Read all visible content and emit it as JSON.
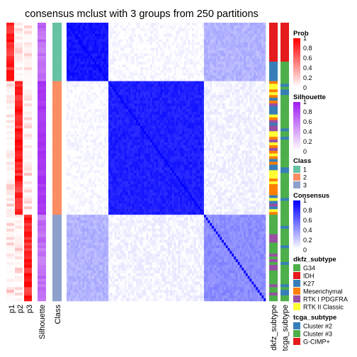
{
  "chart_data": {
    "type": "heatmap",
    "title": "consensus mclust with 3 groups from 250 partitions",
    "n_samples": 100,
    "segments": [
      {
        "class": 1,
        "count": 21
      },
      {
        "class": 2,
        "count": 48
      },
      {
        "class": 3,
        "count": 31
      }
    ],
    "left_tracks": [
      "p1",
      "p2",
      "p3",
      "Silhouette",
      "Class"
    ],
    "right_tracks": [
      "dkfz_subtype",
      "tcga_subtype"
    ],
    "consensus_blocks": [
      {
        "rows": [
          1,
          1
        ],
        "cols": [
          1,
          1
        ],
        "value": 0.92
      },
      {
        "rows": [
          1,
          1
        ],
        "cols": [
          2,
          2
        ],
        "value": 0.02
      },
      {
        "rows": [
          1,
          1
        ],
        "cols": [
          3,
          3
        ],
        "value": 0.3
      },
      {
        "rows": [
          2,
          2
        ],
        "cols": [
          2,
          2
        ],
        "value": 0.88
      },
      {
        "rows": [
          2,
          2
        ],
        "cols": [
          3,
          3
        ],
        "value": 0.05
      },
      {
        "rows": [
          3,
          3
        ],
        "cols": [
          3,
          3
        ],
        "value": 0.45
      }
    ],
    "legends": [
      {
        "title": "Prob",
        "type": "continuous",
        "ticks": [
          "1",
          "0.8",
          "0.6",
          "0.4",
          "0.2",
          "0"
        ],
        "low": "#ffffff",
        "high": "#ff0000"
      },
      {
        "title": "Silhouette",
        "type": "continuous",
        "ticks": [
          "1",
          "0.8",
          "0.6",
          "0.4",
          "0.2",
          "0"
        ],
        "low": "#ffffff",
        "high": "#a020f0"
      },
      {
        "title": "Class",
        "type": "discrete",
        "items": [
          {
            "label": "1",
            "color": "#66c2a5"
          },
          {
            "label": "2",
            "color": "#fc8d62"
          },
          {
            "label": "3",
            "color": "#8da0cb"
          }
        ]
      },
      {
        "title": "Consensus",
        "type": "continuous",
        "ticks": [
          "1",
          "0.8",
          "0.6",
          "0.4",
          "0.2",
          "0"
        ],
        "low": "#ffffff",
        "high": "#0000ff"
      },
      {
        "title": "dkfz_subtype",
        "type": "discrete",
        "items": [
          {
            "label": "G34",
            "color": "#4daf4a"
          },
          {
            "label": "IDH",
            "color": "#e41a1c"
          },
          {
            "label": "K27",
            "color": "#377eb8"
          },
          {
            "label": "Mesenchymal",
            "color": "#ff7f00"
          },
          {
            "label": "RTK I PDGFRA",
            "color": "#984ea3"
          },
          {
            "label": "RTK II Classic",
            "color": "#ffff33"
          }
        ]
      },
      {
        "title": "tcga_subtype",
        "type": "discrete",
        "items": [
          {
            "label": "Cluster #2",
            "color": "#377eb8"
          },
          {
            "label": "Cluster #3",
            "color": "#4daf4a"
          },
          {
            "label": "G-CIMP+",
            "color": "#e41a1c"
          }
        ]
      }
    ],
    "colors": {
      "prob": "#ff0000",
      "silhouette": "#a020f0",
      "consensus": "#0000ff"
    }
  }
}
